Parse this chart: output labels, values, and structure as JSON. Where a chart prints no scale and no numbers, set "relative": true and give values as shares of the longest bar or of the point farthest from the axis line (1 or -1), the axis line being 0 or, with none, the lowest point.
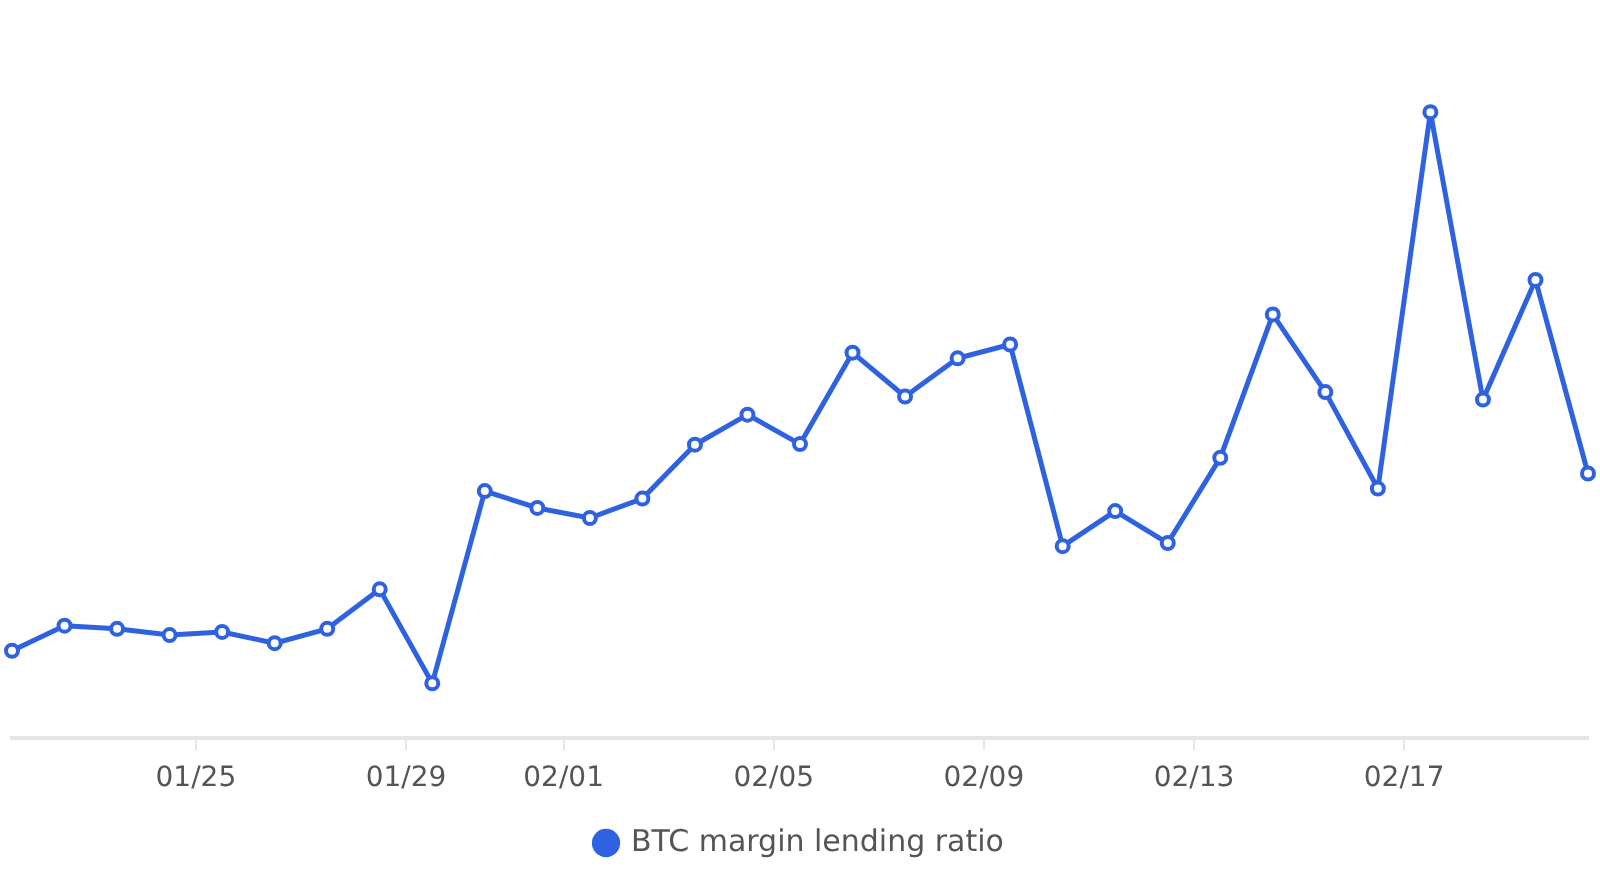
{
  "chart_data": {
    "type": "line",
    "relative": true,
    "legend": "bottom",
    "grid": false,
    "marker": "circle",
    "line_style": "solid",
    "x": [
      "--01-21T12:00",
      "--01-22T12:00",
      "--01-23T12:00",
      "--01-24T12:00",
      "--01-25T12:00",
      "--01-26T12:00",
      "--01-27T12:00",
      "--01-28T12:00",
      "--01-29T12:00",
      "--01-30T12:00",
      "--01-31T12:00",
      "--02-01T12:00",
      "--02-02T12:00",
      "--02-03T12:00",
      "--02-04T12:00",
      "--02-05T12:00",
      "--02-06T12:00",
      "--02-07T12:00",
      "--02-08T12:00",
      "--02-09T12:00",
      "--02-10T12:00",
      "--02-11T12:00",
      "--02-12T12:00",
      "--02-13T12:00",
      "--02-14T12:00",
      "--02-15T12:00",
      "--02-16T12:00",
      "--02-17T12:00",
      "--02-18T12:00",
      "--02-19T12:00",
      "--02-20T12:00"
    ],
    "xlim": [
      "--01-21T12:00",
      "--02-20T12:00"
    ],
    "xticks": [
      {
        "value": "--01-25",
        "label": "01/25"
      },
      {
        "value": "--01-29",
        "label": "01/29"
      },
      {
        "value": "--02-01",
        "label": "02/01"
      },
      {
        "value": "--02-05",
        "label": "02/05"
      },
      {
        "value": "--02-09",
        "label": "02/09"
      },
      {
        "value": "--02-13",
        "label": "02/13"
      },
      {
        "value": "--02-17",
        "label": "02/17"
      }
    ],
    "series": [
      {
        "name": "BTC margin lending ratio",
        "color": "#2f62e0",
        "values": [
          0.14,
          0.18,
          0.175,
          0.165,
          0.17,
          0.152,
          0.175,
          0.238,
          0.088,
          0.395,
          0.368,
          0.352,
          0.383,
          0.469,
          0.517,
          0.47,
          0.616,
          0.546,
          0.607,
          0.629,
          0.307,
          0.363,
          0.312,
          0.448,
          0.677,
          0.553,
          0.399,
          1,
          0.541,
          0.732,
          0.423
        ]
      }
    ]
  }
}
